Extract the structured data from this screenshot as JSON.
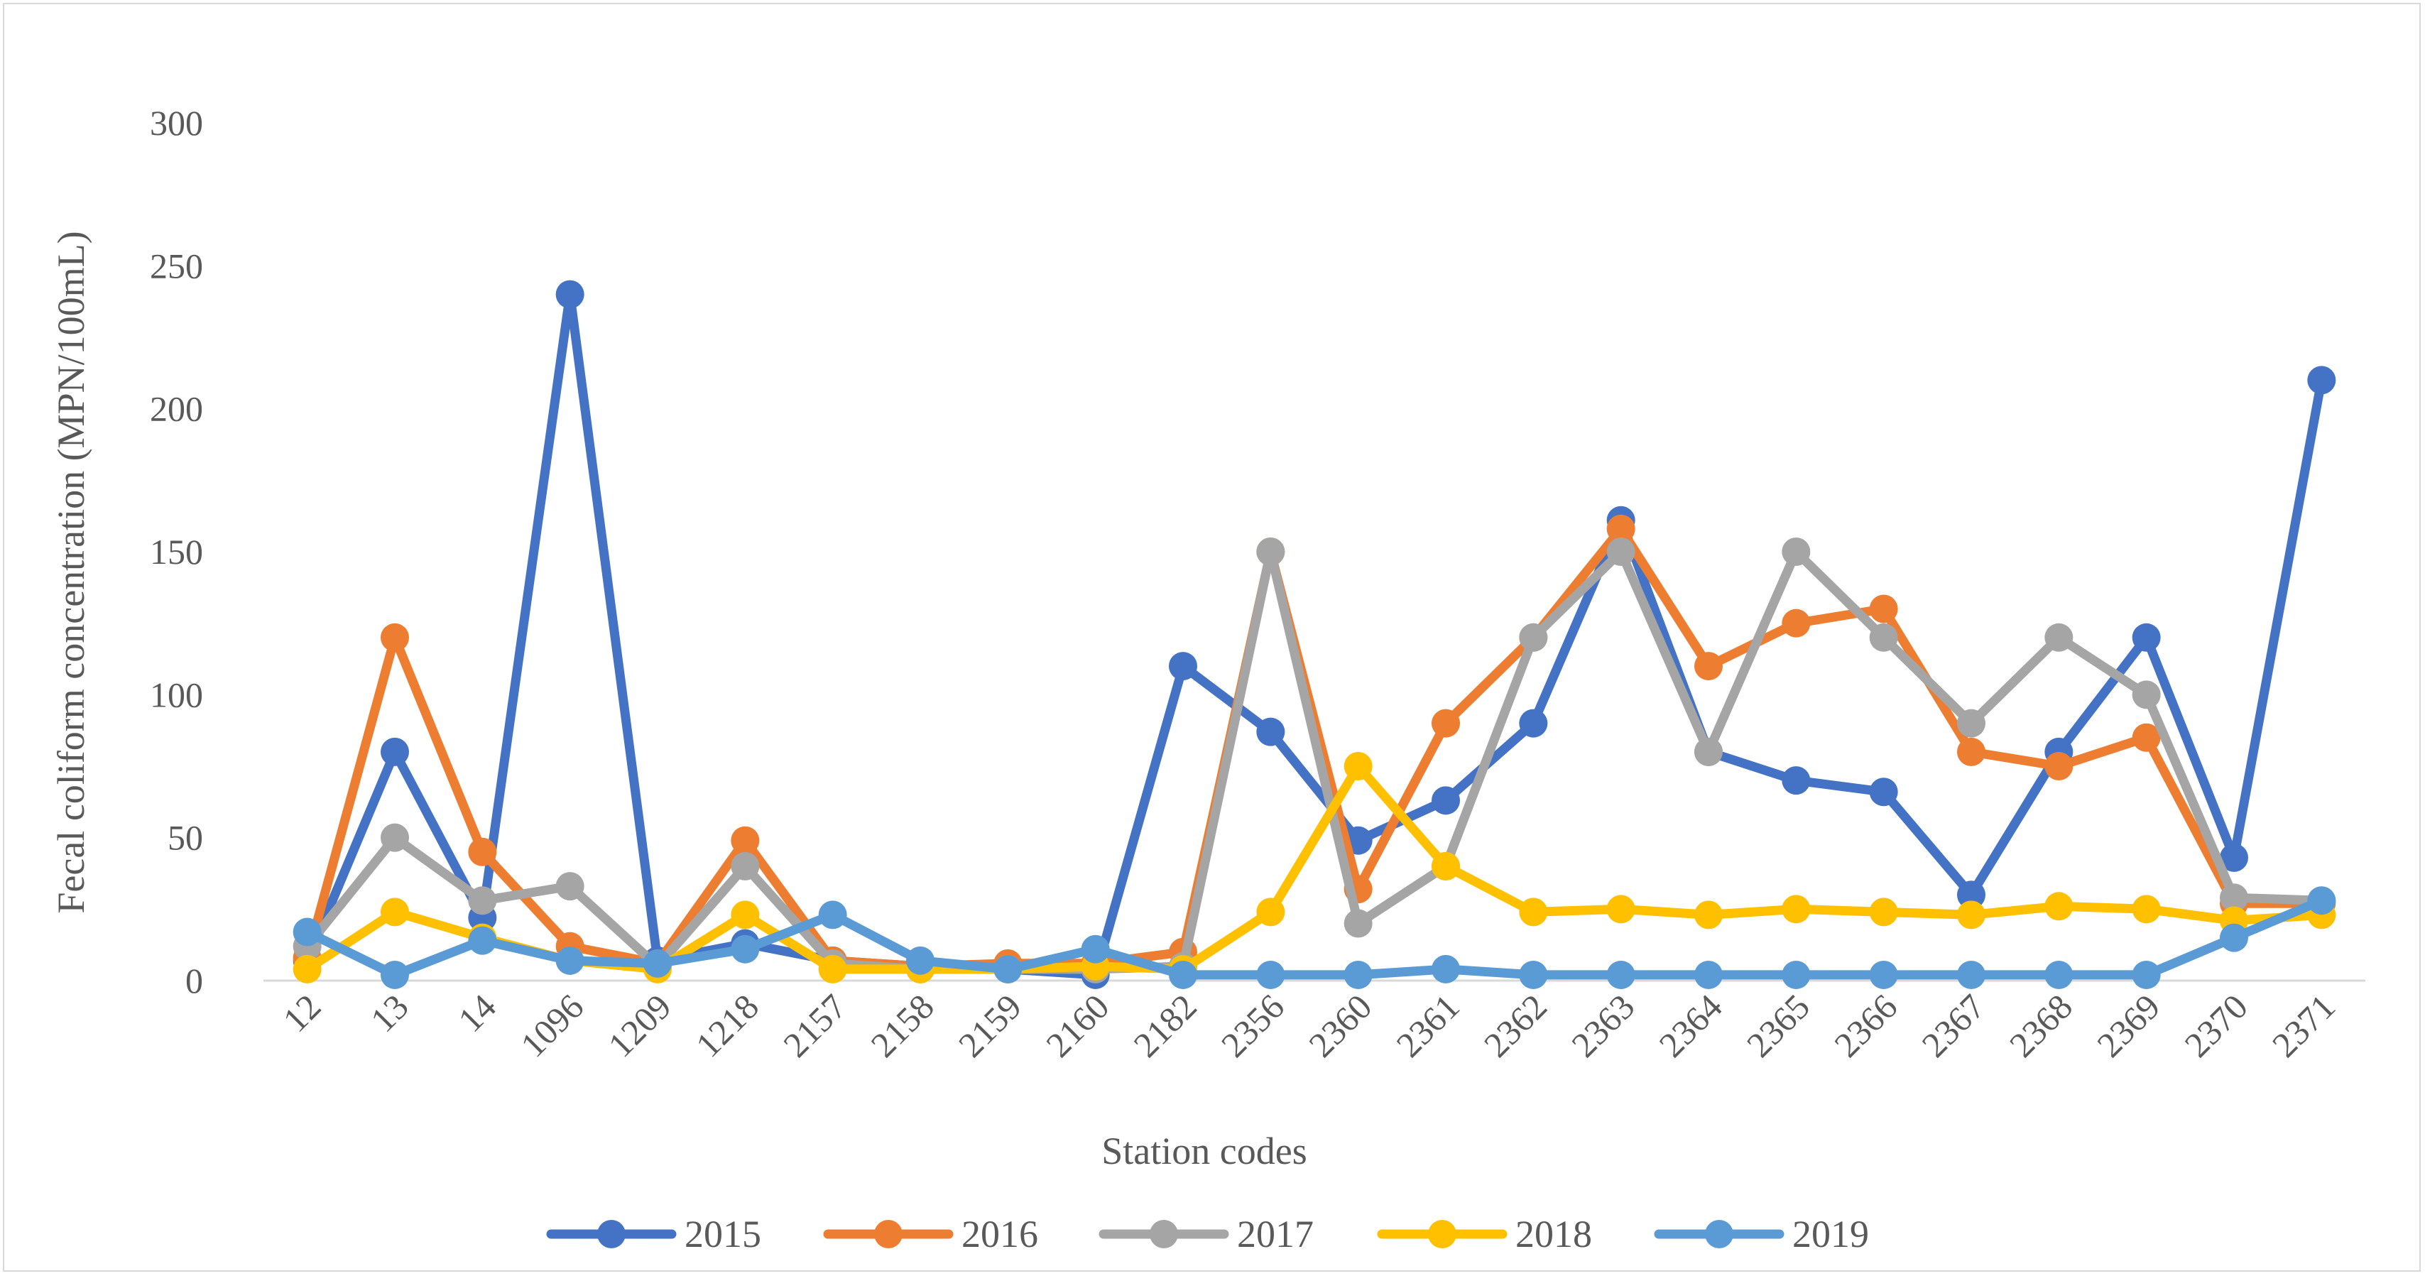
{
  "chart_data": {
    "type": "line",
    "title": "",
    "xlabel": "Station codes",
    "ylabel": "Fecal coliform concentration (MPN/100mL)",
    "ylim": [
      0,
      300
    ],
    "yticks": [
      0,
      50,
      100,
      150,
      200,
      250,
      300
    ],
    "grid": false,
    "legend_position": "bottom",
    "categories": [
      "12",
      "13",
      "14",
      "1096",
      "1209",
      "1218",
      "2157",
      "2158",
      "2159",
      "2160",
      "2182",
      "2356",
      "2360",
      "2361",
      "2362",
      "2363",
      "2364",
      "2365",
      "2366",
      "2367",
      "2368",
      "2369",
      "2370",
      "2371"
    ],
    "series": [
      {
        "name": "2015",
        "color": "#4472c4",
        "values": [
          7,
          80,
          22,
          240,
          7,
          13,
          7,
          5,
          4,
          2,
          110,
          87,
          49,
          63,
          90,
          161,
          80,
          70,
          66,
          30,
          80,
          120,
          43,
          210
        ]
      },
      {
        "name": "2016",
        "color": "#ed7d31",
        "values": [
          8,
          120,
          45,
          12,
          6,
          49,
          7,
          5,
          6,
          6,
          10,
          150,
          32,
          90,
          120,
          158,
          110,
          125,
          130,
          80,
          75,
          85,
          27,
          27
        ]
      },
      {
        "name": "2017",
        "color": "#a5a5a5",
        "values": [
          12,
          50,
          28,
          33,
          5,
          40,
          6,
          4,
          4,
          4,
          5,
          150,
          20,
          40,
          120,
          150,
          80,
          150,
          120,
          90,
          120,
          100,
          29,
          28
        ]
      },
      {
        "name": "2018",
        "color": "#ffc000",
        "values": [
          4,
          24,
          15,
          7,
          4,
          23,
          4,
          4,
          4,
          5,
          4,
          24,
          75,
          40,
          24,
          25,
          23,
          25,
          24,
          23,
          26,
          25,
          21,
          23
        ]
      },
      {
        "name": "2019",
        "color": "#5b9bd5",
        "values": [
          17,
          2,
          14,
          7,
          6,
          11,
          23,
          7,
          4,
          11,
          2,
          2,
          2,
          4,
          2,
          2,
          2,
          2,
          2,
          2,
          2,
          2,
          15,
          28
        ]
      }
    ]
  }
}
